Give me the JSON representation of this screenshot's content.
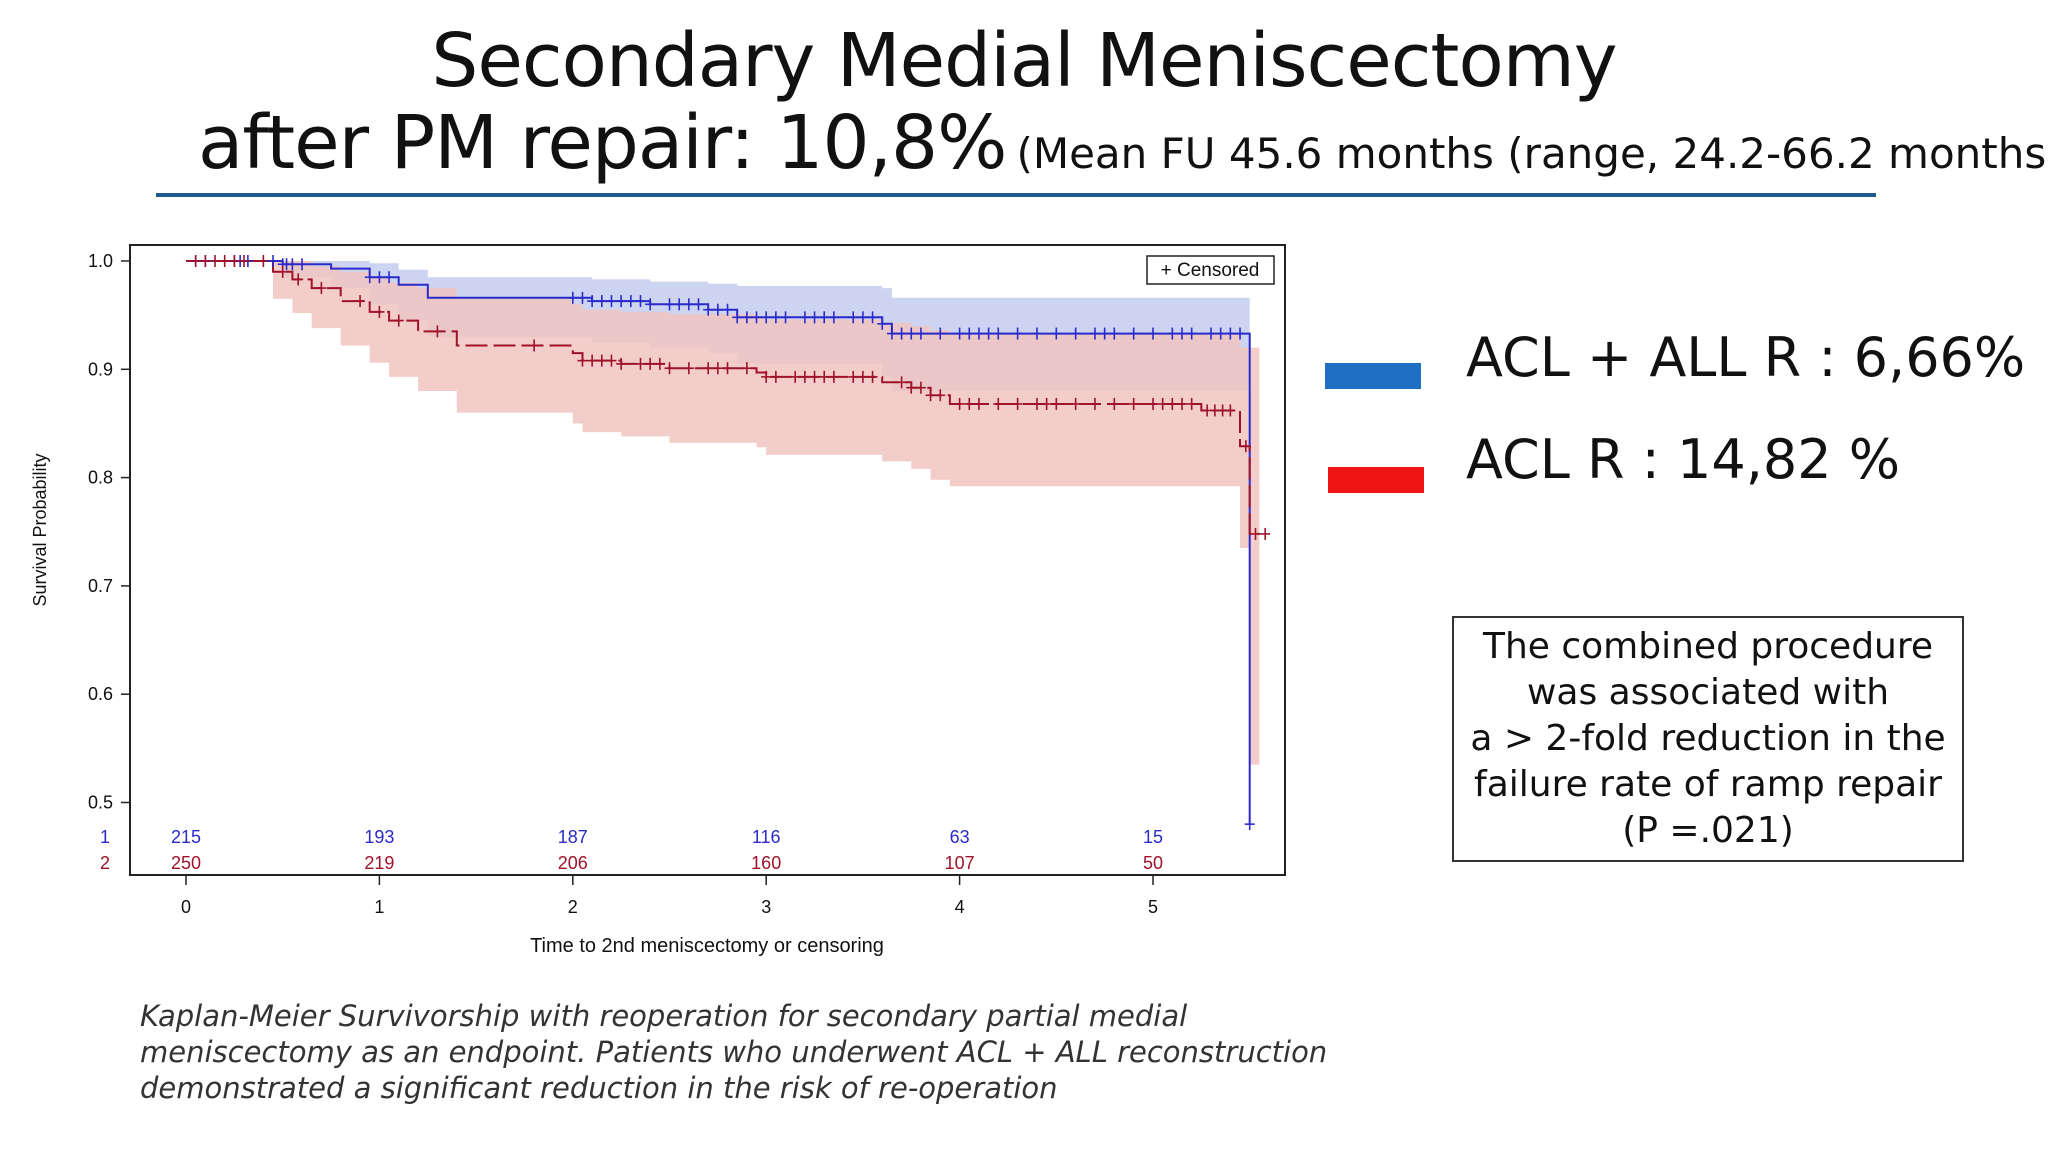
{
  "slide": {
    "title_line1": "Secondary Medial Meniscectomy",
    "title_line2_main": "after PM repair: 10,8%",
    "title_line2_sub": "(Mean FU 45.6 months (range, 24.2-66.2 months)",
    "rule_color": "#1f5a8c"
  },
  "legend_right": [
    {
      "label": "ACL + ALL R : 6,66%",
      "color": "#1f6fc4"
    },
    {
      "label": "ACL R : 14,82 %",
      "color": "#f01414"
    }
  ],
  "note_box_lines": [
    "The combined procedure",
    "was associated with",
    "a > 2-fold reduction in the",
    "failure rate of ramp repair",
    "(P =.021)"
  ],
  "caption_lines": [
    "Kaplan-Meier Survivorship with reoperation for secondary partial medial",
    "meniscectomy as an endpoint. Patients who underwent ACL + ALL reconstruction",
    "demonstrated a significant reduction in the risk of re-operation"
  ],
  "chart_data": {
    "type": "line",
    "subtype": "kaplan-meier",
    "xlabel": "Time to 2nd meniscectomy or censoring",
    "ylabel": "Survival Probability",
    "xlim": [
      -0.3,
      5.7
    ],
    "ylim": [
      0.47,
      1.015
    ],
    "x_ticks": [
      0,
      1,
      2,
      3,
      4,
      5
    ],
    "y_ticks": [
      0.5,
      0.6,
      0.7,
      0.8,
      0.9,
      1.0
    ],
    "y_tick_labels": [
      "0.5",
      "0.6",
      "0.7",
      "0.8",
      "0.9",
      "1.0"
    ],
    "grid": false,
    "legend_text": "+ Censored",
    "legend_position": "top-right",
    "series": [
      {
        "id": "1",
        "color": "#2b2bcc",
        "band_color": "#c3cdee",
        "line_style": "solid",
        "x": [
          0,
          0.5,
          0.75,
          0.95,
          1.1,
          1.25,
          2.1,
          2.4,
          2.7,
          2.85,
          3.6,
          3.65,
          5.5,
          5.5
        ],
        "y": [
          1.0,
          0.997,
          0.993,
          0.985,
          0.978,
          0.966,
          0.963,
          0.96,
          0.955,
          0.948,
          0.942,
          0.933,
          0.933,
          0.48
        ],
        "ci_lower": [
          1.0,
          0.985,
          0.975,
          0.96,
          0.945,
          0.93,
          0.925,
          0.92,
          0.915,
          0.905,
          0.893,
          0.88,
          0.88,
          0.88
        ],
        "ci_upper": [
          1.0,
          1.0,
          1.0,
          0.998,
          0.992,
          0.985,
          0.983,
          0.981,
          0.979,
          0.977,
          0.975,
          0.966,
          0.966,
          0.966
        ],
        "censor_x": [
          0.05,
          0.1,
          0.25,
          0.28,
          0.32,
          0.45,
          0.5,
          0.52,
          0.55,
          0.6,
          0.95,
          1.0,
          1.05,
          2.0,
          2.05,
          2.1,
          2.15,
          2.2,
          2.25,
          2.3,
          2.35,
          2.4,
          2.5,
          2.55,
          2.6,
          2.65,
          2.7,
          2.75,
          2.8,
          2.85,
          2.9,
          2.95,
          3.0,
          3.05,
          3.1,
          3.2,
          3.25,
          3.3,
          3.35,
          3.45,
          3.5,
          3.55,
          3.6,
          3.65,
          3.7,
          3.75,
          3.8,
          3.9,
          4.0,
          4.05,
          4.1,
          4.15,
          4.2,
          4.3,
          4.4,
          4.5,
          4.6,
          4.7,
          4.75,
          4.8,
          4.9,
          5.0,
          5.1,
          5.15,
          5.2,
          5.3,
          5.35,
          5.4,
          5.45,
          5.5
        ]
      },
      {
        "id": "2",
        "color": "#a0122a",
        "band_color": "#f0c4c0",
        "line_style": "dashed",
        "x": [
          0,
          0.45,
          0.55,
          0.65,
          0.8,
          0.95,
          1.05,
          1.2,
          1.4,
          2.0,
          2.05,
          2.25,
          2.5,
          2.95,
          3.0,
          3.6,
          3.75,
          3.85,
          3.95,
          5.25,
          5.45,
          5.5,
          5.55
        ],
        "y": [
          1.0,
          0.99,
          0.983,
          0.975,
          0.963,
          0.953,
          0.945,
          0.935,
          0.922,
          0.915,
          0.908,
          0.905,
          0.901,
          0.897,
          0.893,
          0.888,
          0.883,
          0.876,
          0.868,
          0.862,
          0.829,
          0.748,
          0.748
        ],
        "ci_lower": [
          1.0,
          0.965,
          0.952,
          0.938,
          0.922,
          0.906,
          0.893,
          0.88,
          0.86,
          0.85,
          0.842,
          0.838,
          0.832,
          0.828,
          0.821,
          0.815,
          0.808,
          0.798,
          0.792,
          0.792,
          0.735,
          0.535,
          0.535
        ],
        "ci_upper": [
          1.0,
          1.0,
          1.0,
          0.995,
          0.99,
          0.985,
          0.98,
          0.975,
          0.965,
          0.96,
          0.955,
          0.953,
          0.951,
          0.949,
          0.946,
          0.943,
          0.94,
          0.936,
          0.932,
          0.932,
          0.92,
          0.92,
          0.92
        ],
        "censor_x": [
          0.05,
          0.1,
          0.15,
          0.2,
          0.25,
          0.3,
          0.4,
          0.5,
          0.58,
          0.7,
          0.9,
          1.0,
          1.1,
          1.3,
          1.8,
          2.05,
          2.1,
          2.15,
          2.2,
          2.25,
          2.35,
          2.4,
          2.45,
          2.5,
          2.6,
          2.7,
          2.75,
          2.8,
          2.9,
          3.0,
          3.05,
          3.15,
          3.2,
          3.25,
          3.3,
          3.35,
          3.45,
          3.5,
          3.55,
          3.7,
          3.75,
          3.8,
          3.85,
          3.9,
          4.0,
          4.05,
          4.1,
          4.2,
          4.3,
          4.4,
          4.45,
          4.5,
          4.6,
          4.7,
          4.8,
          4.9,
          5.0,
          5.05,
          5.1,
          5.15,
          5.2,
          5.28,
          5.32,
          5.36,
          5.4,
          5.48,
          5.53,
          5.58
        ]
      }
    ],
    "at_risk": {
      "labels": [
        "1",
        "2"
      ],
      "times": [
        0,
        1,
        2,
        3,
        4,
        5
      ],
      "rows": [
        [
          "215",
          "193",
          "187",
          "116",
          "63",
          "15"
        ],
        [
          "250",
          "219",
          "206",
          "160",
          "107",
          "50"
        ]
      ],
      "colors": [
        "#2b2bcc",
        "#a0122a"
      ]
    }
  }
}
